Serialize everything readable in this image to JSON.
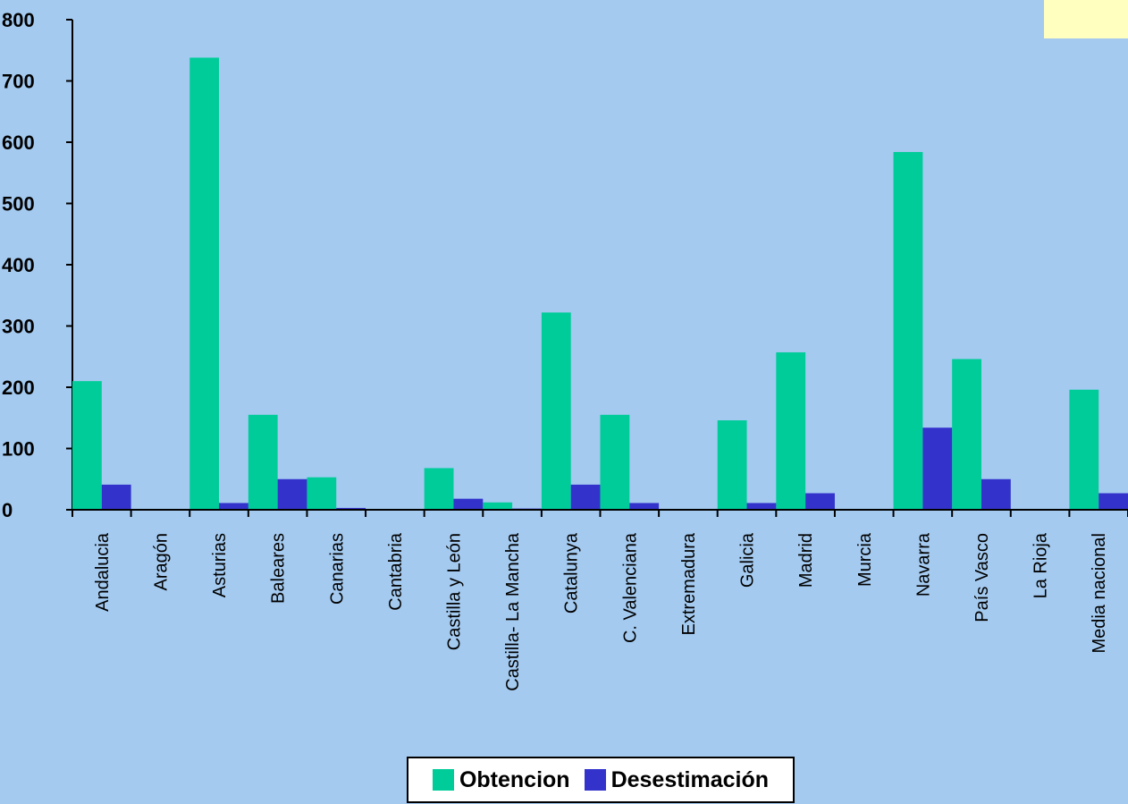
{
  "chart_data": {
    "type": "bar",
    "categories": [
      "Andalucia",
      "Aragón",
      "Asturias",
      "Baleares",
      "Canarias",
      "Cantabria",
      "Castilla y León",
      "Castilla- La Mancha",
      "Catalunya",
      "C. Valenciana",
      "Extremadura",
      "Galicia",
      "Madrid",
      "Murcia",
      "Navarra",
      "País Vasco",
      "La Rioja",
      "Media nacional"
    ],
    "series": [
      {
        "name": "Obtencion",
        "color": "#00cc99",
        "values": [
          210,
          0,
          738,
          155,
          53,
          0,
          68,
          12,
          322,
          155,
          0,
          146,
          257,
          0,
          584,
          246,
          0,
          196
        ]
      },
      {
        "name": "Desestimación",
        "color": "#3333cc",
        "values": [
          41,
          0,
          11,
          50,
          3,
          0,
          18,
          2,
          41,
          11,
          0,
          11,
          27,
          0,
          134,
          50,
          0,
          27
        ]
      }
    ],
    "ylim": [
      0,
      800
    ],
    "yticks": [
      "0",
      "100",
      "200",
      "300",
      "400",
      "500",
      "600",
      "700",
      "800"
    ],
    "legend_position": "bottom"
  }
}
